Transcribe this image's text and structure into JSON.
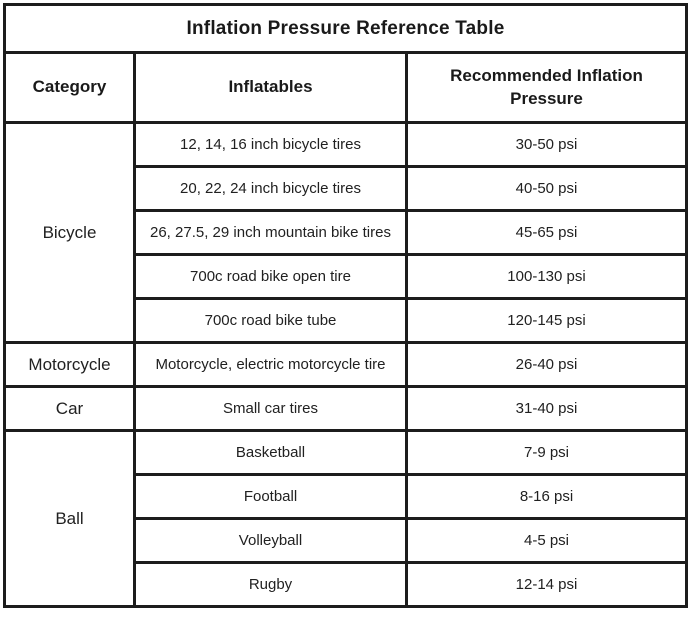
{
  "table": {
    "title": "Inflation Pressure Reference Table",
    "columns": {
      "category": "Category",
      "inflatables": "Inflatables",
      "pressure": "Recommended Inflation Pressure"
    },
    "groups": [
      {
        "category": "Bicycle",
        "rows": [
          {
            "inflatable": "12, 14, 16 inch bicycle tires",
            "pressure": "30-50 psi"
          },
          {
            "inflatable": "20, 22, 24 inch bicycle tires",
            "pressure": "40-50 psi"
          },
          {
            "inflatable": "26, 27.5, 29 inch mountain bike tires",
            "pressure": "45-65 psi"
          },
          {
            "inflatable": "700c road bike open tire",
            "pressure": "100-130 psi"
          },
          {
            "inflatable": "700c road bike tube",
            "pressure": "120-145 psi"
          }
        ]
      },
      {
        "category": "Motorcycle",
        "rows": [
          {
            "inflatable": "Motorcycle, electric motorcycle tire",
            "pressure": "26-40 psi"
          }
        ]
      },
      {
        "category": "Car",
        "rows": [
          {
            "inflatable": "Small car tires",
            "pressure": "31-40 psi"
          }
        ]
      },
      {
        "category": "Ball",
        "rows": [
          {
            "inflatable": "Basketball",
            "pressure": "7-9 psi"
          },
          {
            "inflatable": "Football",
            "pressure": "8-16 psi"
          },
          {
            "inflatable": "Volleyball",
            "pressure": "4-5 psi"
          },
          {
            "inflatable": "Rugby",
            "pressure": "12-14 psi"
          }
        ]
      }
    ]
  },
  "colors": {
    "border": "#1c1c1c",
    "text": "#212121",
    "background": "#ffffff"
  }
}
